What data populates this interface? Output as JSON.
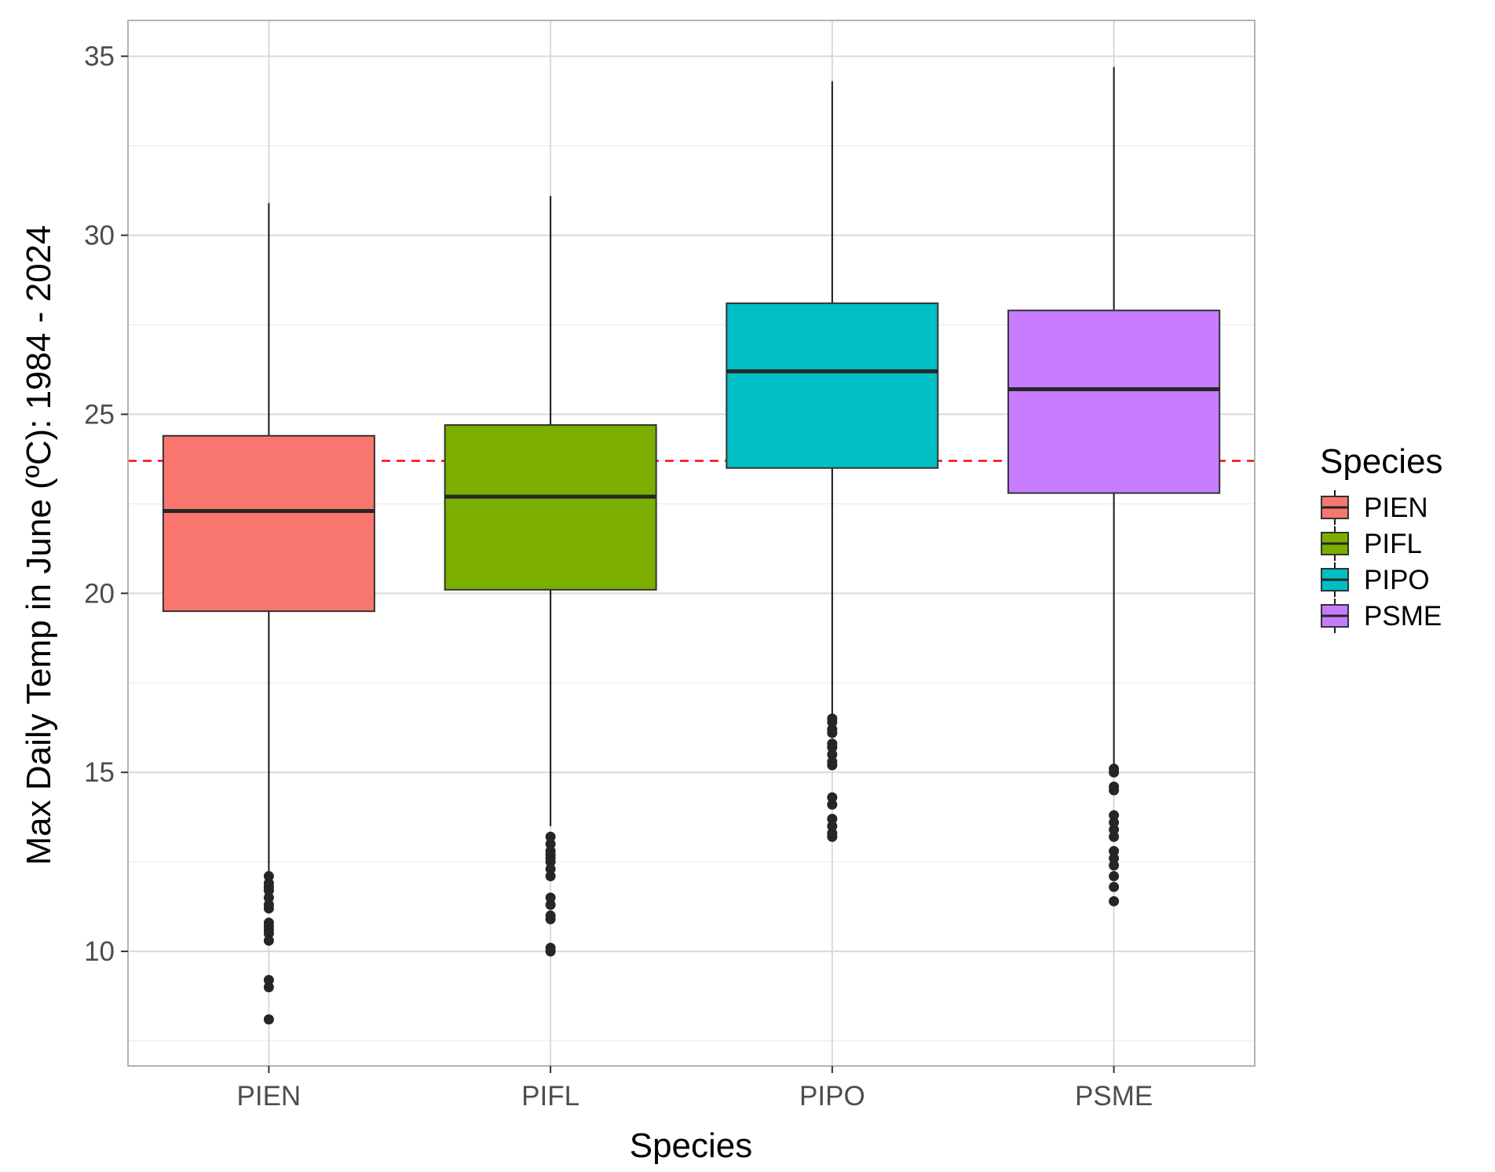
{
  "chart_data": {
    "type": "box",
    "xlabel": "Species",
    "ylabel": "Max Daily Temp in June (ºC): 1984 - 2024",
    "ylim": [
      6.8,
      36.0
    ],
    "yticks": [
      10,
      15,
      20,
      25,
      30,
      35
    ],
    "grid": true,
    "reference_line": {
      "y": 23.7,
      "color": "#ff0000",
      "style": "dashed"
    },
    "legend": {
      "title": "Species",
      "position": "right"
    },
    "categories": [
      "PIEN",
      "PIFL",
      "PIPO",
      "PSME"
    ],
    "boxes": [
      {
        "name": "PIEN",
        "color": "#F8766D",
        "whisker_low": 12.1,
        "q1": 19.5,
        "median": 22.3,
        "q3": 24.4,
        "whisker_high": 30.9,
        "outliers": [
          12.1,
          11.9,
          11.8,
          11.7,
          11.5,
          11.3,
          11.2,
          10.8,
          10.7,
          10.6,
          10.5,
          10.3,
          9.2,
          9.0,
          8.1
        ]
      },
      {
        "name": "PIFL",
        "color": "#7CAE00",
        "whisker_low": 13.5,
        "q1": 20.1,
        "median": 22.7,
        "q3": 24.7,
        "whisker_high": 31.1,
        "outliers": [
          13.2,
          13.0,
          12.8,
          12.7,
          12.6,
          12.5,
          12.3,
          12.1,
          11.5,
          11.3,
          11.0,
          10.9,
          10.1,
          10.0
        ]
      },
      {
        "name": "PIPO",
        "color": "#00BFC4",
        "whisker_low": 16.6,
        "q1": 23.5,
        "median": 26.2,
        "q3": 28.1,
        "whisker_high": 34.3,
        "outliers": [
          16.5,
          16.4,
          16.2,
          16.1,
          15.8,
          15.7,
          15.5,
          15.3,
          15.2,
          14.3,
          14.1,
          13.7,
          13.5,
          13.3,
          13.2
        ]
      },
      {
        "name": "PSME",
        "color": "#C77CFF",
        "whisker_low": 15.2,
        "q1": 22.8,
        "median": 25.7,
        "q3": 27.9,
        "whisker_high": 34.7,
        "outliers": [
          15.1,
          15.0,
          14.6,
          14.5,
          13.8,
          13.6,
          13.4,
          13.2,
          12.8,
          12.6,
          12.4,
          12.1,
          11.8,
          11.4
        ]
      }
    ]
  }
}
